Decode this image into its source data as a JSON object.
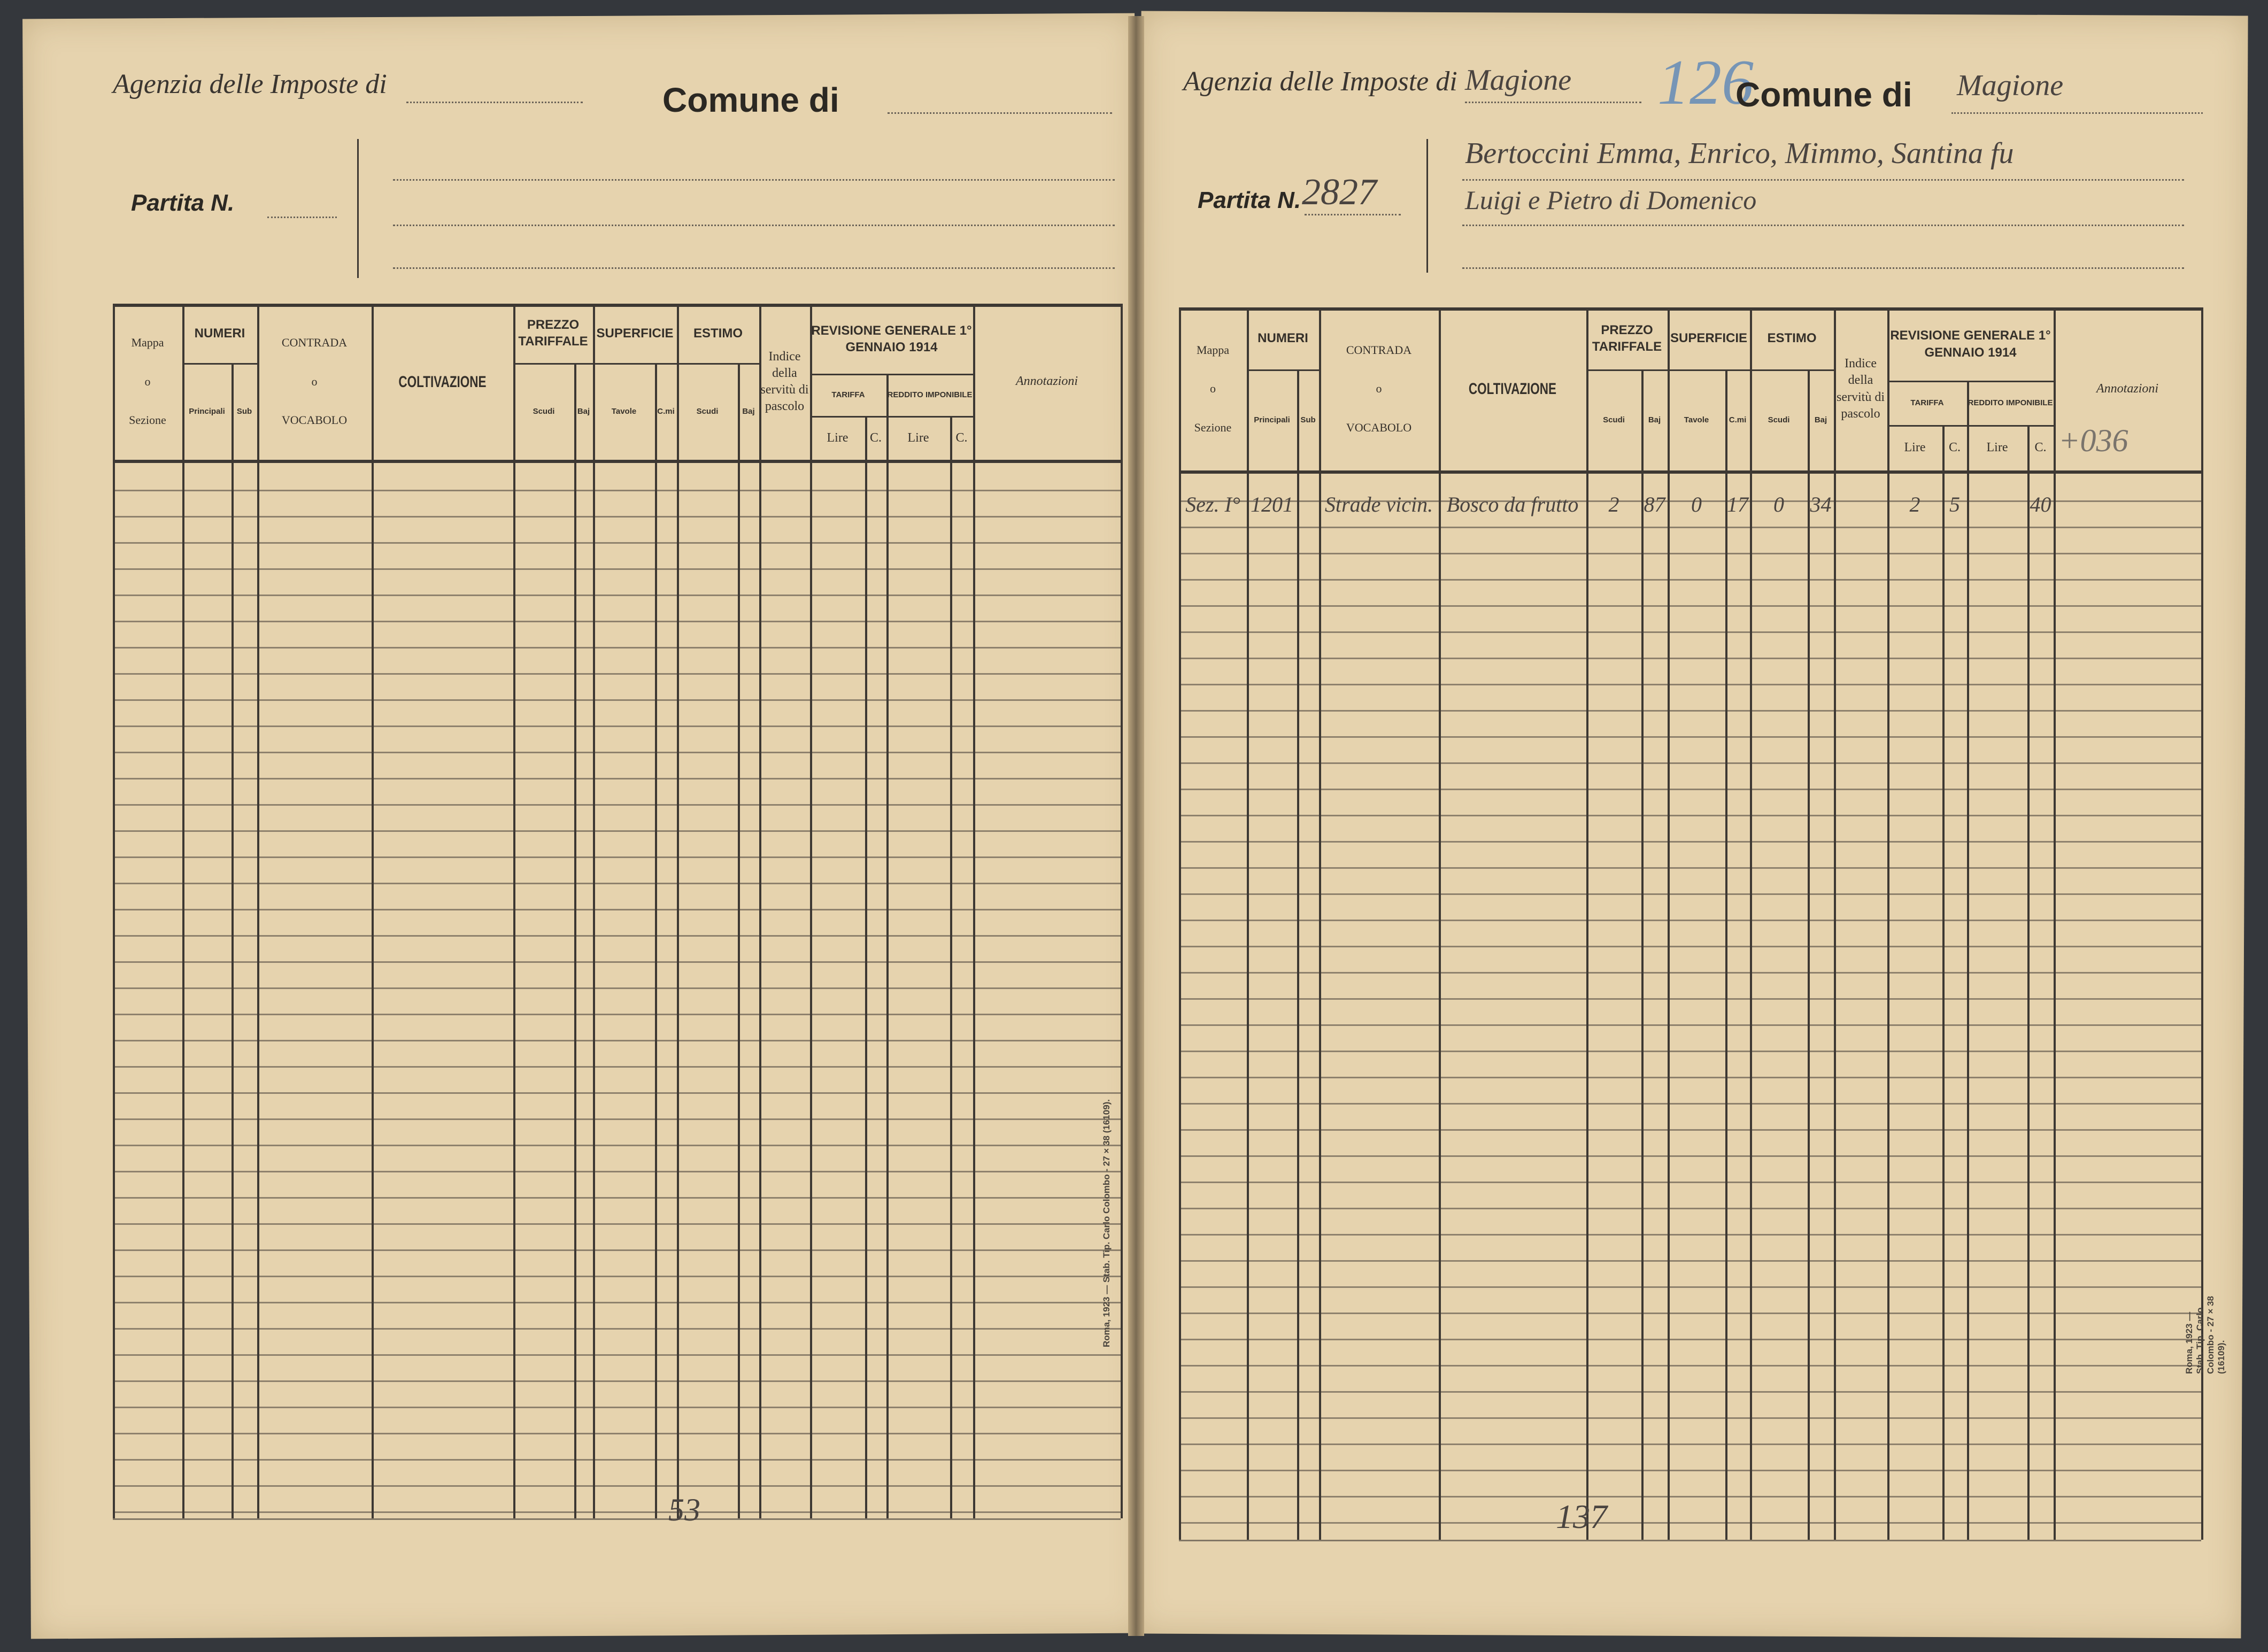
{
  "table_header": {
    "mappa": "Mappa",
    "o": "o",
    "sezione": "Sezione",
    "numeri": "NUMERI",
    "principali": "Principali",
    "sub": "Sub",
    "contrada": "CONTRADA",
    "vocabolo": "VOCABOLO",
    "coltivazione": "COLTIVAZIONE",
    "prezzo": "PREZZO TARIFFALE",
    "scudi": "Scudi",
    "baj": "Baj",
    "superficie": "SUPERFICIE",
    "tavole": "Tavole",
    "cmi": "C.mi",
    "estimo": "ESTIMO",
    "indice": "Indice della servitù di pascolo",
    "revisione": "REVISIONE GENERALE 1° GENNAIO 1914",
    "tariffa": "TARIFFA",
    "reddito": "REDDITO IMPONIBILE",
    "lire": "Lire",
    "c": "C.",
    "annotazioni": "Annotazioni"
  },
  "printer_imprint": "Roma, 1923 — Stab. Tip. Carlo Colombo - 27 × 38 (16109).",
  "left_page": {
    "agenzia_label": "Agenzia delle Imposte di",
    "comune_label": "Comune di",
    "partita_label": "Partita N.",
    "bottom_mark": "53"
  },
  "right_page": {
    "agenzia_label": "Agenzia delle Imposte di",
    "agenzia_value": "Magione",
    "volume_number": "126",
    "comune_label": "Comune di",
    "comune_value": "Magione",
    "partita_label": "Partita N.",
    "partita_value": "2827",
    "owner_lines": [
      "Bertoccini Emma, Enrico, Mimmo, Santina fu",
      "Luigi e Pietro di Domenico"
    ],
    "annotation_mark": "+036",
    "rows": [
      {
        "mappa": "Sez. I°",
        "principali": "1201",
        "sub": "",
        "contrada": "Strade vicin.",
        "coltivazione": "Bosco da frutto",
        "p_scudi": "2",
        "p_baj": "87",
        "tavole": "0",
        "cmi": "17",
        "e_scudi": "0",
        "e_baj": "34",
        "indice": "",
        "t_lire": "2",
        "t_c": "5",
        "r_lire": "",
        "r_c": "40",
        "annotazioni": ""
      }
    ],
    "bottom_mark": "137"
  },
  "colors": {
    "paper": "#e6d3ae",
    "ink": "#3d3833",
    "blue_pencil": "#5b86b8",
    "background": "#34373c"
  }
}
